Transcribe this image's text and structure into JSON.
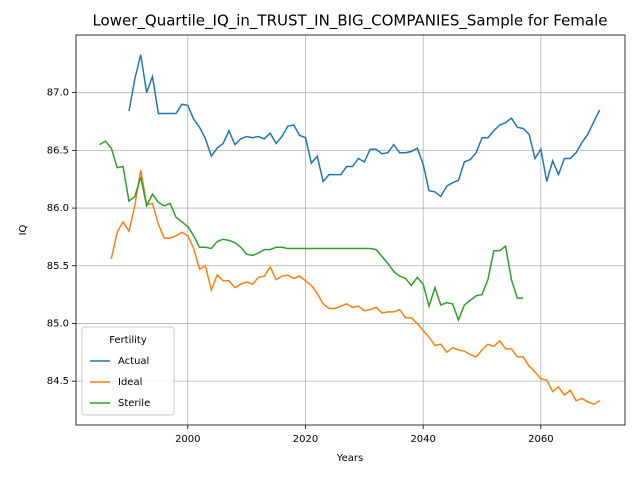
{
  "chart_data": {
    "type": "line",
    "title": "Lower_Quartile_IQ_in_TRUST_IN_BIG_COMPANIES_Sample for Female",
    "xlabel": "Years",
    "ylabel": "IQ",
    "legend_title": "Fertility",
    "legend_loc": "lower left",
    "grid": true,
    "x": [
      1985,
      1986,
      1987,
      1988,
      1989,
      1990,
      1991,
      1992,
      1993,
      1994,
      1995,
      1996,
      1997,
      1998,
      1999,
      2000,
      2001,
      2002,
      2003,
      2004,
      2005,
      2006,
      2007,
      2008,
      2009,
      2010,
      2011,
      2012,
      2013,
      2014,
      2015,
      2016,
      2017,
      2018,
      2019,
      2020,
      2021,
      2022,
      2023,
      2024,
      2025,
      2026,
      2027,
      2028,
      2029,
      2030,
      2031,
      2032,
      2033,
      2034,
      2035,
      2036,
      2037,
      2038,
      2039,
      2040,
      2041,
      2042,
      2043,
      2044,
      2045,
      2046,
      2047,
      2048,
      2049,
      2050,
      2051,
      2052,
      2053,
      2054,
      2055,
      2056,
      2057,
      2058,
      2059,
      2060,
      2061,
      2062,
      2063,
      2064,
      2065,
      2066,
      2067,
      2068,
      2069,
      2070
    ],
    "series": [
      {
        "name": "Actual",
        "color": "#1f77b4",
        "values": [
          null,
          null,
          null,
          null,
          null,
          86.84,
          87.12,
          87.33,
          87.0,
          87.14,
          86.82,
          86.82,
          86.82,
          86.82,
          86.9,
          86.89,
          86.77,
          86.7,
          86.6,
          86.45,
          86.52,
          86.56,
          86.67,
          86.55,
          86.6,
          86.62,
          86.61,
          86.62,
          86.6,
          86.65,
          86.56,
          86.62,
          86.71,
          86.72,
          86.63,
          86.61,
          86.39,
          86.45,
          86.23,
          86.29,
          86.29,
          86.29,
          86.36,
          86.36,
          86.43,
          86.4,
          86.51,
          86.51,
          86.47,
          86.48,
          86.55,
          86.48,
          86.48,
          86.49,
          86.52,
          86.38,
          86.15,
          86.14,
          86.1,
          86.19,
          86.22,
          86.24,
          86.4,
          86.42,
          86.48,
          86.61,
          86.61,
          86.67,
          86.72,
          86.74,
          86.78,
          86.7,
          86.69,
          86.64,
          86.43,
          86.51,
          86.23,
          86.41,
          86.29,
          86.43,
          86.43,
          86.48,
          86.57,
          86.64,
          86.75,
          86.85
        ]
      },
      {
        "name": "Ideal",
        "color": "#ff7f0e",
        "values": [
          null,
          null,
          85.56,
          85.79,
          85.88,
          85.8,
          86.02,
          86.33,
          86.03,
          86.04,
          85.86,
          85.74,
          85.74,
          85.76,
          85.79,
          85.76,
          85.65,
          85.47,
          85.5,
          85.29,
          85.42,
          85.37,
          85.37,
          85.31,
          85.34,
          85.36,
          85.34,
          85.4,
          85.41,
          85.49,
          85.38,
          85.41,
          85.42,
          85.39,
          85.41,
          85.37,
          85.33,
          85.26,
          85.17,
          85.13,
          85.13,
          85.15,
          85.17,
          85.14,
          85.15,
          85.11,
          85.12,
          85.14,
          85.09,
          85.1,
          85.1,
          85.12,
          85.05,
          85.05,
          85.0,
          84.94,
          84.88,
          84.81,
          84.82,
          84.75,
          84.79,
          84.77,
          84.76,
          84.73,
          84.71,
          84.77,
          84.82,
          84.8,
          84.85,
          84.78,
          84.78,
          84.71,
          84.71,
          84.63,
          84.58,
          84.52,
          84.51,
          84.41,
          84.45,
          84.38,
          84.42,
          84.33,
          84.35,
          84.32,
          84.3,
          84.33
        ]
      },
      {
        "name": "Sterile",
        "color": "#2ca02c",
        "values": [
          86.55,
          86.58,
          86.52,
          86.35,
          86.36,
          86.06,
          86.1,
          86.27,
          86.02,
          86.12,
          86.05,
          86.02,
          86.04,
          85.92,
          85.88,
          85.84,
          85.76,
          85.66,
          85.66,
          85.65,
          85.71,
          85.73,
          85.72,
          85.7,
          85.66,
          85.6,
          85.59,
          85.61,
          85.64,
          85.64,
          85.66,
          85.66,
          85.65,
          85.65,
          85.65,
          85.65,
          85.65,
          85.65,
          85.65,
          85.65,
          85.65,
          85.65,
          85.65,
          85.65,
          85.65,
          85.65,
          85.65,
          85.64,
          85.58,
          85.52,
          85.45,
          85.41,
          85.39,
          85.33,
          85.4,
          85.34,
          85.15,
          85.31,
          85.16,
          85.18,
          85.17,
          85.03,
          85.16,
          85.2,
          85.24,
          85.25,
          85.38,
          85.63,
          85.63,
          85.67,
          85.38,
          85.22,
          85.22,
          null,
          null,
          null,
          null,
          null,
          null,
          null,
          null,
          null,
          null,
          null,
          null,
          null
        ]
      }
    ],
    "xlim": [
      1981,
      2074.3
    ],
    "xticks": [
      2000,
      2020,
      2040,
      2060
    ],
    "ylim": [
      84.12,
      87.5
    ],
    "yticks": [
      84.5,
      {
        "value": 85,
        "label": "85.0"
      },
      85.5,
      {
        "value": 86,
        "label": "86.0"
      },
      86.5,
      {
        "value": 87,
        "label": "87.0"
      }
    ]
  }
}
